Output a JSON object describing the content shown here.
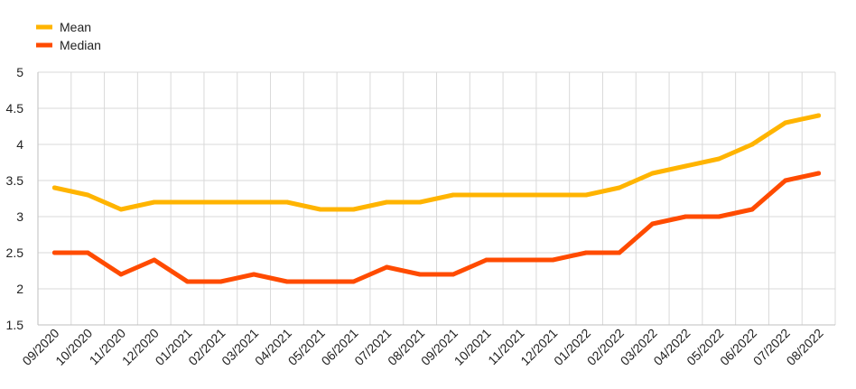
{
  "chart_data": {
    "type": "line",
    "title": "",
    "xlabel": "",
    "ylabel": "",
    "ylim": [
      1.5,
      5
    ],
    "yticks": [
      "1.5",
      "2",
      "2.5",
      "3",
      "3.5",
      "4",
      "4.5",
      "5"
    ],
    "grid": true,
    "legend_position": "top-left",
    "categories": [
      "09/2020",
      "10/2020",
      "11/2020",
      "12/2020",
      "01/2021",
      "02/2021",
      "03/2021",
      "04/2021",
      "05/2021",
      "06/2021",
      "07/2021",
      "08/2021",
      "09/2021",
      "10/2021",
      "11/2021",
      "12/2021",
      "01/2022",
      "02/2022",
      "03/2022",
      "04/2022",
      "05/2022",
      "06/2022",
      "07/2022",
      "08/2022"
    ],
    "series": [
      {
        "name": "Mean",
        "color": "#FFB400",
        "values": [
          3.4,
          3.3,
          3.1,
          3.2,
          3.2,
          3.2,
          3.2,
          3.2,
          3.1,
          3.1,
          3.2,
          3.2,
          3.3,
          3.3,
          3.3,
          3.3,
          3.3,
          3.4,
          3.6,
          3.7,
          3.8,
          4.0,
          4.3,
          4.4
        ]
      },
      {
        "name": "Median",
        "color": "#FF4B00",
        "values": [
          2.5,
          2.5,
          2.2,
          2.4,
          2.1,
          2.1,
          2.2,
          2.1,
          2.1,
          2.1,
          2.3,
          2.2,
          2.2,
          2.4,
          2.4,
          2.4,
          2.5,
          2.5,
          2.9,
          3.0,
          3.0,
          3.1,
          3.5,
          3.6
        ]
      }
    ]
  }
}
